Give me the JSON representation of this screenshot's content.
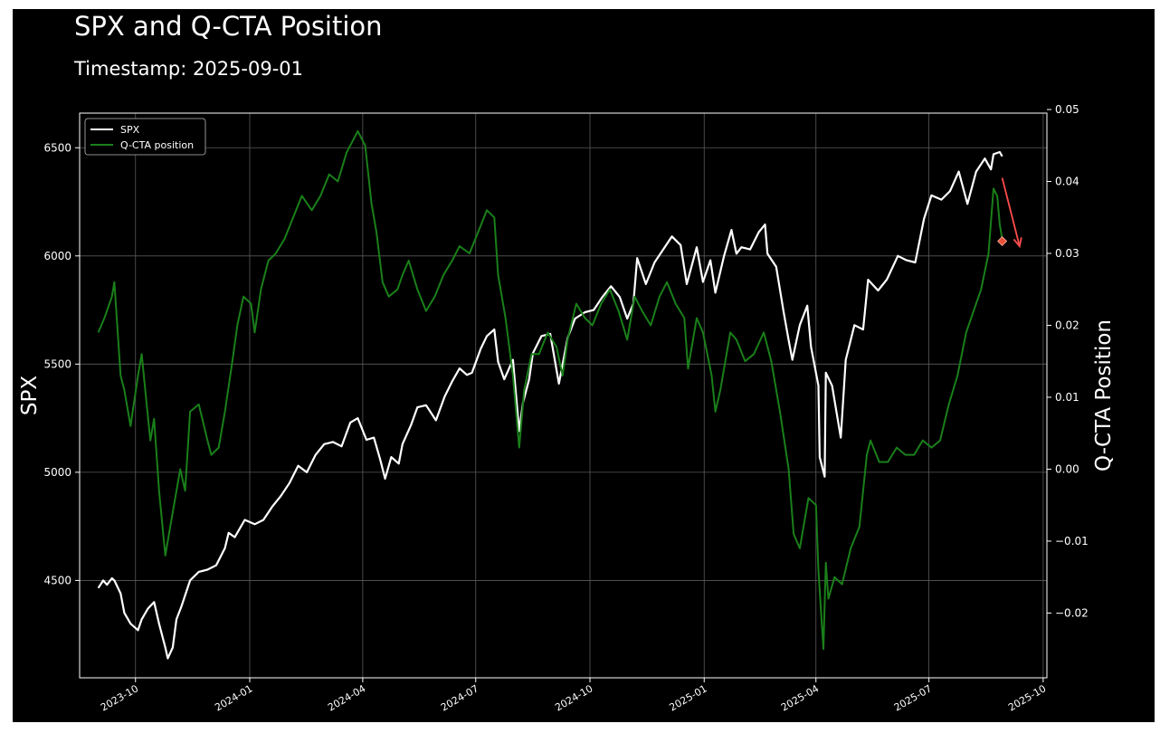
{
  "chart_data": {
    "type": "line",
    "title": "SPX and Q-CTA Position",
    "subtitle": "Timestamp: 2025-09-01",
    "ylabel": "SPX",
    "y2label": "Q-CTA Position",
    "xlabel": "",
    "background": "#000000",
    "grid": true,
    "legend_position": "top-left",
    "x_ticks": [
      "2023-10",
      "2024-01",
      "2024-04",
      "2024-07",
      "2024-10",
      "2025-01",
      "2025-04",
      "2025-07",
      "2025-10"
    ],
    "y_ticks": [
      4500,
      5000,
      5500,
      6000,
      6500
    ],
    "y2_ticks": [
      -0.02,
      -0.01,
      0.0,
      0.01,
      0.02,
      0.03,
      0.04,
      0.05
    ],
    "y2_tick_labels": [
      "−0.02",
      "−0.01",
      "0.00",
      "0.01",
      "0.02",
      "0.03",
      "0.04",
      "0.05"
    ],
    "xlim": [
      "2023-08-17",
      "2025-10-04"
    ],
    "ylim": [
      4050,
      6660
    ],
    "y2lim": [
      -0.029,
      0.0495
    ],
    "series": [
      {
        "name": "SPX",
        "axis": "left",
        "color": "#ffffff",
        "points": [
          [
            "2023-09-01",
            4465
          ],
          [
            "2023-09-05",
            4500
          ],
          [
            "2023-09-08",
            4480
          ],
          [
            "2023-09-12",
            4510
          ],
          [
            "2023-09-14",
            4500
          ],
          [
            "2023-09-19",
            4440
          ],
          [
            "2023-09-22",
            4350
          ],
          [
            "2023-09-27",
            4300
          ],
          [
            "2023-10-03",
            4270
          ],
          [
            "2023-10-06",
            4320
          ],
          [
            "2023-10-11",
            4370
          ],
          [
            "2023-10-16",
            4400
          ],
          [
            "2023-10-20",
            4300
          ],
          [
            "2023-10-25",
            4190
          ],
          [
            "2023-10-27",
            4140
          ],
          [
            "2023-10-31",
            4190
          ],
          [
            "2023-11-03",
            4320
          ],
          [
            "2023-11-07",
            4380
          ],
          [
            "2023-11-14",
            4500
          ],
          [
            "2023-11-21",
            4540
          ],
          [
            "2023-11-28",
            4550
          ],
          [
            "2023-12-05",
            4570
          ],
          [
            "2023-12-12",
            4650
          ],
          [
            "2023-12-15",
            4720
          ],
          [
            "2023-12-20",
            4700
          ],
          [
            "2023-12-28",
            4780
          ],
          [
            "2024-01-05",
            4760
          ],
          [
            "2024-01-12",
            4780
          ],
          [
            "2024-01-19",
            4840
          ],
          [
            "2024-01-26",
            4890
          ],
          [
            "2024-02-02",
            4950
          ],
          [
            "2024-02-09",
            5030
          ],
          [
            "2024-02-16",
            5000
          ],
          [
            "2024-02-23",
            5080
          ],
          [
            "2024-03-01",
            5130
          ],
          [
            "2024-03-08",
            5140
          ],
          [
            "2024-03-15",
            5120
          ],
          [
            "2024-03-22",
            5230
          ],
          [
            "2024-03-28",
            5250
          ],
          [
            "2024-04-04",
            5150
          ],
          [
            "2024-04-10",
            5160
          ],
          [
            "2024-04-15",
            5060
          ],
          [
            "2024-04-19",
            4970
          ],
          [
            "2024-04-24",
            5070
          ],
          [
            "2024-04-30",
            5040
          ],
          [
            "2024-05-03",
            5130
          ],
          [
            "2024-05-10",
            5220
          ],
          [
            "2024-05-15",
            5300
          ],
          [
            "2024-05-22",
            5310
          ],
          [
            "2024-05-30",
            5240
          ],
          [
            "2024-06-06",
            5350
          ],
          [
            "2024-06-12",
            5420
          ],
          [
            "2024-06-18",
            5480
          ],
          [
            "2024-06-24",
            5450
          ],
          [
            "2024-06-28",
            5460
          ],
          [
            "2024-07-05",
            5570
          ],
          [
            "2024-07-10",
            5630
          ],
          [
            "2024-07-16",
            5660
          ],
          [
            "2024-07-19",
            5510
          ],
          [
            "2024-07-24",
            5430
          ],
          [
            "2024-07-31",
            5520
          ],
          [
            "2024-08-05",
            5190
          ],
          [
            "2024-08-08",
            5320
          ],
          [
            "2024-08-13",
            5430
          ],
          [
            "2024-08-16",
            5550
          ],
          [
            "2024-08-23",
            5630
          ],
          [
            "2024-08-30",
            5640
          ],
          [
            "2024-09-06",
            5410
          ],
          [
            "2024-09-13",
            5620
          ],
          [
            "2024-09-19",
            5710
          ],
          [
            "2024-09-27",
            5740
          ],
          [
            "2024-10-04",
            5750
          ],
          [
            "2024-10-11",
            5810
          ],
          [
            "2024-10-18",
            5860
          ],
          [
            "2024-10-25",
            5810
          ],
          [
            "2024-10-31",
            5710
          ],
          [
            "2024-11-05",
            5780
          ],
          [
            "2024-11-08",
            5990
          ],
          [
            "2024-11-15",
            5870
          ],
          [
            "2024-11-22",
            5970
          ],
          [
            "2024-11-29",
            6030
          ],
          [
            "2024-12-06",
            6090
          ],
          [
            "2024-12-13",
            6050
          ],
          [
            "2024-12-18",
            5870
          ],
          [
            "2024-12-26",
            6040
          ],
          [
            "2024-12-31",
            5880
          ],
          [
            "2025-01-06",
            5980
          ],
          [
            "2025-01-10",
            5830
          ],
          [
            "2025-01-17",
            6000
          ],
          [
            "2025-01-23",
            6120
          ],
          [
            "2025-01-27",
            6010
          ],
          [
            "2025-01-31",
            6040
          ],
          [
            "2025-02-07",
            6030
          ],
          [
            "2025-02-14",
            6110
          ],
          [
            "2025-02-19",
            6145
          ],
          [
            "2025-02-21",
            6010
          ],
          [
            "2025-02-28",
            5950
          ],
          [
            "2025-03-06",
            5740
          ],
          [
            "2025-03-10",
            5610
          ],
          [
            "2025-03-13",
            5520
          ],
          [
            "2025-03-19",
            5680
          ],
          [
            "2025-03-25",
            5770
          ],
          [
            "2025-03-28",
            5580
          ],
          [
            "2025-04-03",
            5400
          ],
          [
            "2025-04-04",
            5070
          ],
          [
            "2025-04-08",
            4980
          ],
          [
            "2025-04-09",
            5460
          ],
          [
            "2025-04-14",
            5400
          ],
          [
            "2025-04-21",
            5160
          ],
          [
            "2025-04-25",
            5520
          ],
          [
            "2025-05-02",
            5680
          ],
          [
            "2025-05-09",
            5660
          ],
          [
            "2025-05-13",
            5890
          ],
          [
            "2025-05-21",
            5840
          ],
          [
            "2025-05-28",
            5890
          ],
          [
            "2025-06-06",
            6000
          ],
          [
            "2025-06-13",
            5980
          ],
          [
            "2025-06-20",
            5970
          ],
          [
            "2025-06-27",
            6170
          ],
          [
            "2025-07-03",
            6280
          ],
          [
            "2025-07-11",
            6260
          ],
          [
            "2025-07-18",
            6300
          ],
          [
            "2025-07-25",
            6390
          ],
          [
            "2025-08-01",
            6240
          ],
          [
            "2025-08-08",
            6390
          ],
          [
            "2025-08-15",
            6450
          ],
          [
            "2025-08-20",
            6400
          ],
          [
            "2025-08-22",
            6470
          ],
          [
            "2025-08-27",
            6480
          ],
          [
            "2025-08-29",
            6460
          ]
        ]
      },
      {
        "name": "Q-CTA position",
        "axis": "right",
        "color": "#1a7f1a",
        "points": [
          [
            "2023-09-01",
            0.019
          ],
          [
            "2023-09-06",
            0.021
          ],
          [
            "2023-09-12",
            0.024
          ],
          [
            "2023-09-14",
            0.026
          ],
          [
            "2023-09-19",
            0.013
          ],
          [
            "2023-09-22",
            0.011
          ],
          [
            "2023-09-27",
            0.006
          ],
          [
            "2023-10-03",
            0.013
          ],
          [
            "2023-10-06",
            0.016
          ],
          [
            "2023-10-10",
            0.009
          ],
          [
            "2023-10-13",
            0.004
          ],
          [
            "2023-10-16",
            0.007
          ],
          [
            "2023-10-20",
            -0.003
          ],
          [
            "2023-10-25",
            -0.012
          ],
          [
            "2023-10-27",
            -0.01
          ],
          [
            "2023-11-01",
            -0.005
          ],
          [
            "2023-11-06",
            0.0
          ],
          [
            "2023-11-10",
            -0.003
          ],
          [
            "2023-11-14",
            0.008
          ],
          [
            "2023-11-21",
            0.009
          ],
          [
            "2023-11-28",
            0.004
          ],
          [
            "2023-12-01",
            0.002
          ],
          [
            "2023-12-07",
            0.003
          ],
          [
            "2023-12-12",
            0.008
          ],
          [
            "2023-12-18",
            0.015
          ],
          [
            "2023-12-22",
            0.02
          ],
          [
            "2023-12-27",
            0.024
          ],
          [
            "2024-01-02",
            0.023
          ],
          [
            "2024-01-05",
            0.019
          ],
          [
            "2024-01-10",
            0.025
          ],
          [
            "2024-01-16",
            0.029
          ],
          [
            "2024-01-22",
            0.03
          ],
          [
            "2024-01-29",
            0.032
          ],
          [
            "2024-02-05",
            0.035
          ],
          [
            "2024-02-12",
            0.038
          ],
          [
            "2024-02-20",
            0.036
          ],
          [
            "2024-02-27",
            0.038
          ],
          [
            "2024-03-05",
            0.041
          ],
          [
            "2024-03-12",
            0.04
          ],
          [
            "2024-03-19",
            0.044
          ],
          [
            "2024-03-25",
            0.046
          ],
          [
            "2024-03-28",
            0.047
          ],
          [
            "2024-04-03",
            0.045
          ],
          [
            "2024-04-08",
            0.037
          ],
          [
            "2024-04-12",
            0.033
          ],
          [
            "2024-04-17",
            0.026
          ],
          [
            "2024-04-22",
            0.024
          ],
          [
            "2024-04-29",
            0.025
          ],
          [
            "2024-05-03",
            0.027
          ],
          [
            "2024-05-08",
            0.029
          ],
          [
            "2024-05-15",
            0.025
          ],
          [
            "2024-05-22",
            0.022
          ],
          [
            "2024-05-29",
            0.024
          ],
          [
            "2024-06-05",
            0.027
          ],
          [
            "2024-06-12",
            0.029
          ],
          [
            "2024-06-18",
            0.031
          ],
          [
            "2024-06-26",
            0.03
          ],
          [
            "2024-07-03",
            0.033
          ],
          [
            "2024-07-10",
            0.036
          ],
          [
            "2024-07-16",
            0.035
          ],
          [
            "2024-07-19",
            0.027
          ],
          [
            "2024-07-25",
            0.021
          ],
          [
            "2024-07-31",
            0.013
          ],
          [
            "2024-08-05",
            0.003
          ],
          [
            "2024-08-09",
            0.011
          ],
          [
            "2024-08-15",
            0.016
          ],
          [
            "2024-08-21",
            0.016
          ],
          [
            "2024-08-28",
            0.019
          ],
          [
            "2024-09-04",
            0.017
          ],
          [
            "2024-09-09",
            0.013
          ],
          [
            "2024-09-13",
            0.018
          ],
          [
            "2024-09-20",
            0.023
          ],
          [
            "2024-09-27",
            0.021
          ],
          [
            "2024-10-03",
            0.02
          ],
          [
            "2024-10-10",
            0.023
          ],
          [
            "2024-10-17",
            0.025
          ],
          [
            "2024-10-24",
            0.022
          ],
          [
            "2024-10-31",
            0.018
          ],
          [
            "2024-11-06",
            0.024
          ],
          [
            "2024-11-12",
            0.022
          ],
          [
            "2024-11-19",
            0.02
          ],
          [
            "2024-11-26",
            0.024
          ],
          [
            "2024-12-02",
            0.026
          ],
          [
            "2024-12-09",
            0.023
          ],
          [
            "2024-12-16",
            0.021
          ],
          [
            "2024-12-19",
            0.014
          ],
          [
            "2024-12-26",
            0.021
          ],
          [
            "2024-12-31",
            0.019
          ],
          [
            "2025-01-07",
            0.013
          ],
          [
            "2025-01-10",
            0.008
          ],
          [
            "2025-01-14",
            0.011
          ],
          [
            "2025-01-22",
            0.019
          ],
          [
            "2025-01-27",
            0.018
          ],
          [
            "2025-02-03",
            0.015
          ],
          [
            "2025-02-10",
            0.016
          ],
          [
            "2025-02-18",
            0.019
          ],
          [
            "2025-02-24",
            0.015
          ],
          [
            "2025-03-03",
            0.008
          ],
          [
            "2025-03-10",
            0.0
          ],
          [
            "2025-03-14",
            -0.009
          ],
          [
            "2025-03-19",
            -0.011
          ],
          [
            "2025-03-26",
            -0.004
          ],
          [
            "2025-04-01",
            -0.005
          ],
          [
            "2025-04-03",
            -0.014
          ],
          [
            "2025-04-07",
            -0.025
          ],
          [
            "2025-04-09",
            -0.013
          ],
          [
            "2025-04-11",
            -0.018
          ],
          [
            "2025-04-16",
            -0.015
          ],
          [
            "2025-04-22",
            -0.016
          ],
          [
            "2025-04-29",
            -0.011
          ],
          [
            "2025-05-06",
            -0.008
          ],
          [
            "2025-05-12",
            0.002
          ],
          [
            "2025-05-15",
            0.004
          ],
          [
            "2025-05-22",
            0.001
          ],
          [
            "2025-05-29",
            0.001
          ],
          [
            "2025-06-05",
            0.003
          ],
          [
            "2025-06-12",
            0.002
          ],
          [
            "2025-06-19",
            0.002
          ],
          [
            "2025-06-26",
            0.004
          ],
          [
            "2025-07-03",
            0.003
          ],
          [
            "2025-07-10",
            0.004
          ],
          [
            "2025-07-17",
            0.009
          ],
          [
            "2025-07-24",
            0.013
          ],
          [
            "2025-07-31",
            0.019
          ],
          [
            "2025-08-06",
            0.022
          ],
          [
            "2025-08-12",
            0.025
          ],
          [
            "2025-08-18",
            0.03
          ],
          [
            "2025-08-22",
            0.039
          ],
          [
            "2025-08-25",
            0.038
          ],
          [
            "2025-08-27",
            0.034
          ],
          [
            "2025-08-29",
            0.032
          ]
        ]
      }
    ],
    "marker": {
      "date": "2025-08-29",
      "value": 0.0317,
      "color": "#e8503a",
      "axis": "right"
    },
    "arrow": {
      "from": [
        "2025-08-29",
        0.0405
      ],
      "to": [
        "2025-09-12",
        0.031
      ],
      "color": "#ff4d4d",
      "axis": "right"
    }
  }
}
